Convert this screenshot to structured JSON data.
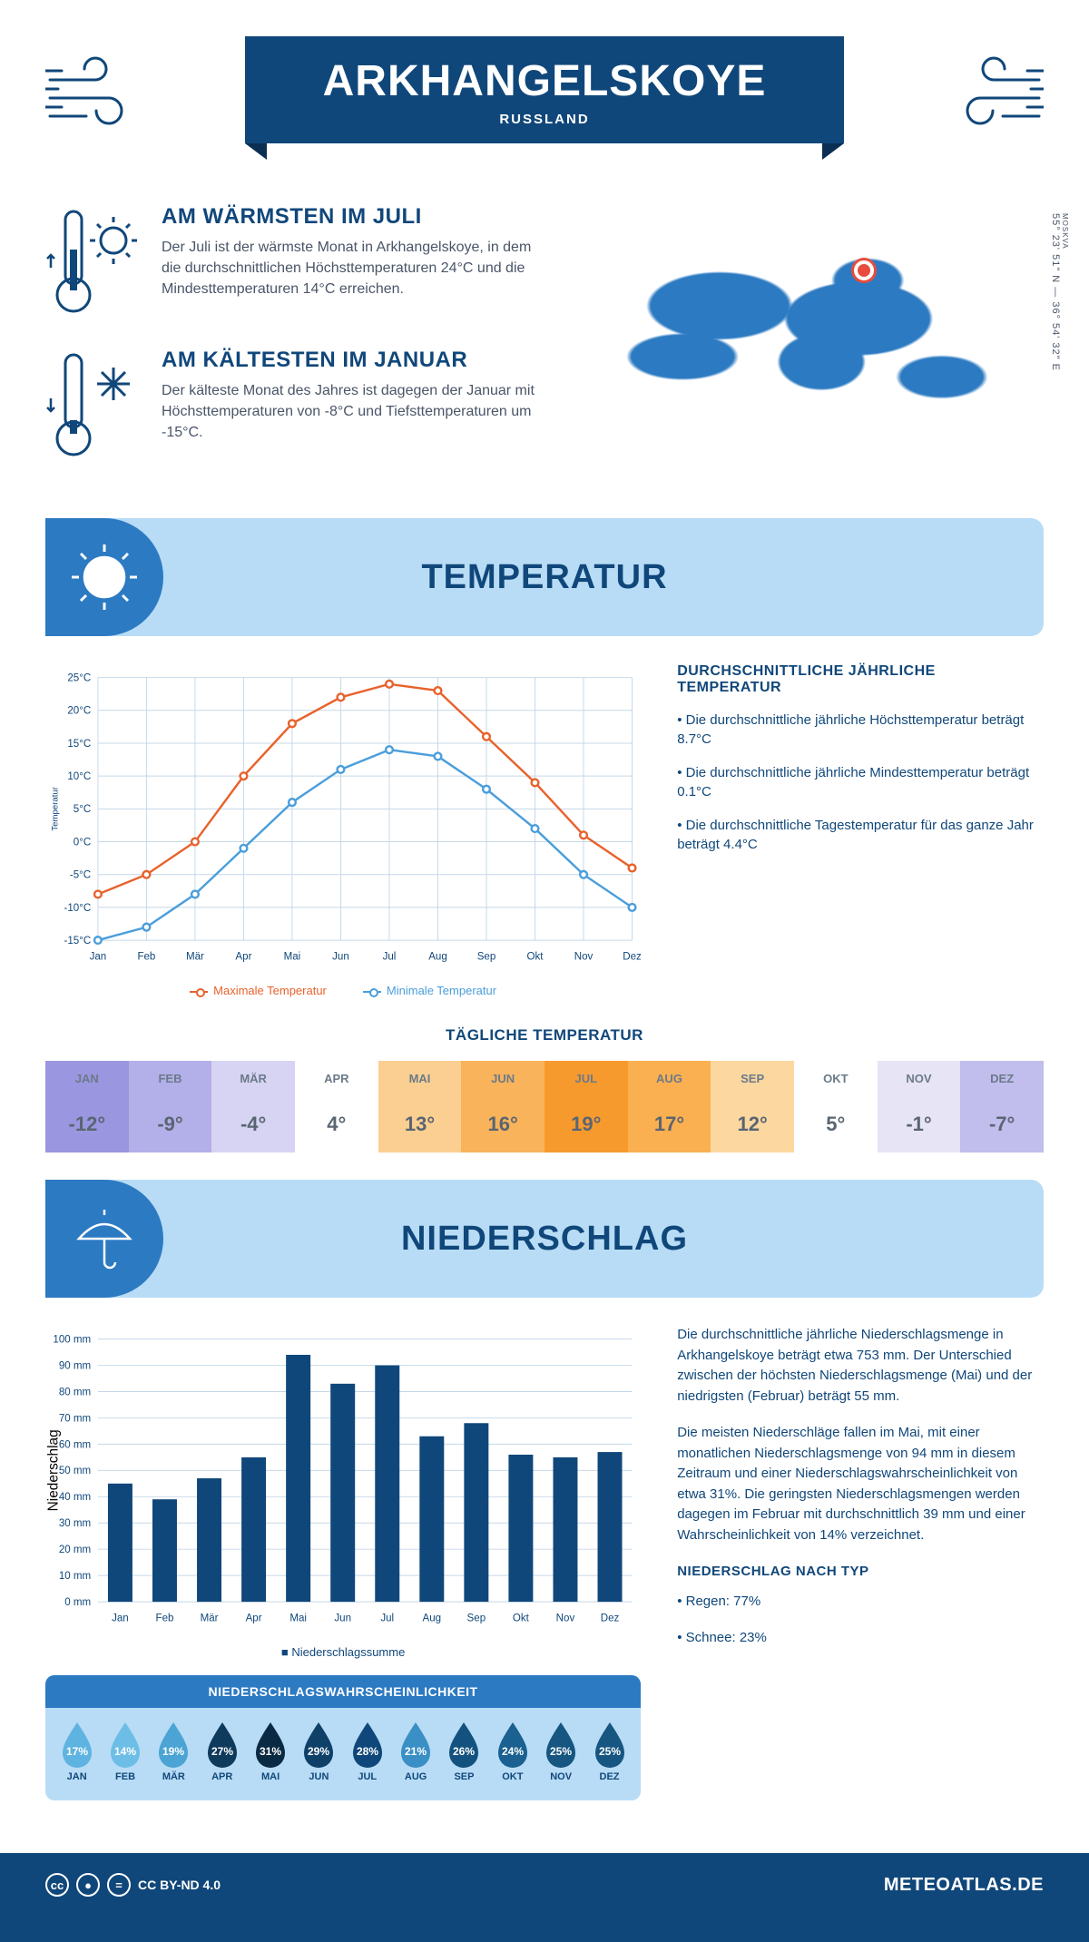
{
  "header": {
    "title": "ARKHANGELSKOYE",
    "country": "RUSSLAND",
    "coords": "55° 23' 51\" N — 36° 54' 32\" E",
    "region": "MOSKVA"
  },
  "intro": {
    "warm_title": "AM WÄRMSTEN IM JULI",
    "warm_body": "Der Juli ist der wärmste Monat in Arkhangelskoye, in dem die durchschnittlichen Höchsttemperaturen 24°C und die Mindesttemperaturen 14°C erreichen.",
    "cold_title": "AM KÄLTESTEN IM JANUAR",
    "cold_body": "Der kälteste Monat des Jahres ist dagegen der Januar mit Höchsttemperaturen von -8°C und Tiefsttemperaturen um -15°C."
  },
  "months": [
    "Jan",
    "Feb",
    "Mär",
    "Apr",
    "Mai",
    "Jun",
    "Jul",
    "Aug",
    "Sep",
    "Okt",
    "Nov",
    "Dez"
  ],
  "months_upper": [
    "JAN",
    "FEB",
    "MÄR",
    "APR",
    "MAI",
    "JUN",
    "JUL",
    "AUG",
    "SEP",
    "OKT",
    "NOV",
    "DEZ"
  ],
  "temperature": {
    "section_title": "TEMPERATUR",
    "yaxis_label": "Temperatur",
    "ylim": [
      -15,
      25
    ],
    "ytick_step": 5,
    "max_series": [
      -8,
      -5,
      0,
      10,
      18,
      22,
      24,
      23,
      16,
      9,
      1,
      -4
    ],
    "min_series": [
      -15,
      -13,
      -8,
      -1,
      6,
      11,
      14,
      13,
      8,
      2,
      -5,
      -10
    ],
    "max_color": "#e8622c",
    "min_color": "#4a9edb",
    "grid_color": "#c5d8e8",
    "legend_max": "Maximale Temperatur",
    "legend_min": "Minimale Temperatur",
    "info_title": "DURCHSCHNITTLICHE JÄHRLICHE TEMPERATUR",
    "info_1": "• Die durchschnittliche jährliche Höchsttemperatur beträgt 8.7°C",
    "info_2": "• Die durchschnittliche jährliche Mindesttemperatur beträgt 0.1°C",
    "info_3": "• Die durchschnittliche Tagestemperatur für das ganze Jahr beträgt 4.4°C"
  },
  "daily": {
    "title": "TÄGLICHE TEMPERATUR",
    "values": [
      "-12°",
      "-9°",
      "-4°",
      "4°",
      "13°",
      "16°",
      "19°",
      "17°",
      "12°",
      "5°",
      "-1°",
      "-7°"
    ],
    "cell_colors": [
      "#9b96e0",
      "#b3afe8",
      "#d6d4f2",
      "#ffffff",
      "#fbcf91",
      "#f9b35a",
      "#f79a2e",
      "#fab050",
      "#fcd79f",
      "#ffffff",
      "#e6e4f5",
      "#c1bdec"
    ]
  },
  "precip": {
    "section_title": "NIEDERSCHLAG",
    "yaxis_label": "Niederschlag",
    "ylim": [
      0,
      100
    ],
    "ytick_step": 10,
    "values": [
      45,
      39,
      47,
      55,
      94,
      83,
      90,
      63,
      68,
      56,
      55,
      57
    ],
    "bar_color": "#10477a",
    "legend": "Niederschlagssumme",
    "body_1": "Die durchschnittliche jährliche Niederschlagsmenge in Arkhangelskoye beträgt etwa 753 mm. Der Unterschied zwischen der höchsten Niederschlagsmenge (Mai) und der niedrigsten (Februar) beträgt 55 mm.",
    "body_2": "Die meisten Niederschläge fallen im Mai, mit einer monatlichen Niederschlagsmenge von 94 mm in diesem Zeitraum und einer Niederschlagswahrscheinlichkeit von etwa 31%. Die geringsten Niederschlagsmengen werden dagegen im Februar mit durchschnittlich 39 mm und einer Wahrscheinlichkeit von 14% verzeichnet.",
    "type_title": "NIEDERSCHLAG NACH TYP",
    "type_1": "• Regen: 77%",
    "type_2": "• Schnee: 23%"
  },
  "probability": {
    "title": "NIEDERSCHLAGSWAHRSCHEINLICHKEIT",
    "values": [
      "17%",
      "14%",
      "19%",
      "27%",
      "31%",
      "29%",
      "28%",
      "21%",
      "26%",
      "24%",
      "25%",
      "25%"
    ],
    "drop_colors": [
      "#5fb3e0",
      "#6dbee6",
      "#4ba4d4",
      "#0e3a5c",
      "#0a2942",
      "#0f4068",
      "#10477a",
      "#3a8fc4",
      "#13527e",
      "#1a6090",
      "#165680",
      "#165680"
    ]
  },
  "footer": {
    "license": "CC BY-ND 4.0",
    "brand": "METEOATLAS.DE"
  }
}
